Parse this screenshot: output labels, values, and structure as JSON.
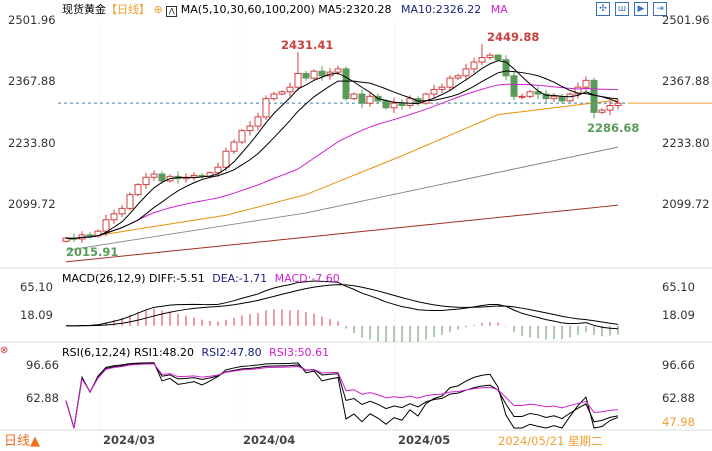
{
  "header": {
    "symbol": "现货黄金",
    "period": "【日线】",
    "ma_label": "MA(5,10,30,60,100,200)",
    "ma5": "MA5:2320.28",
    "ma10": "MA10:2326.22",
    "ma_more": "MA"
  },
  "toolbar": [
    "crosshair-icon",
    "chart-type-icon",
    "play-icon",
    "exit-icon"
  ],
  "macd": {
    "label": "MACD(26,12,9)",
    "diff": "DIFF:-5.51",
    "dea": "DEA:-1.71",
    "macd": "MACD:-7.60",
    "ticks": [
      "65.10",
      "18.09"
    ]
  },
  "rsi": {
    "label": "RSI(6,12,24)",
    "rsi1": "RSI1:48.20",
    "rsi2": "RSI2:47.80",
    "rsi3": "RSI3:50.61",
    "ticks": [
      "96.66",
      "62.88"
    ],
    "current": "47.98"
  },
  "price_ticks": [
    "2501.96",
    "2367.88",
    "2233.80",
    "2099.72"
  ],
  "annotations": {
    "high1": "2431.41",
    "high2": "2449.88",
    "low1": "2286.68",
    "low0": "2015.91"
  },
  "xaxis": {
    "period_button": "日线▲",
    "months": [
      "2024/03",
      "2024/04",
      "2024/05"
    ],
    "cursor_date": "2024/05/21 星期二"
  },
  "colors": {
    "up": "#d04040",
    "down": "#5a9a5a",
    "ma5": "#000000",
    "ma10": "#000000",
    "ma30": "#d020d0",
    "ma60": "#e8900a",
    "ma100": "#888888",
    "ma200": "#a03020"
  },
  "chart_data": {
    "type": "candlestick",
    "first_open": 2018,
    "closes": [
      2025,
      2023,
      2032,
      2030,
      2040,
      2065,
      2078,
      2090,
      2120,
      2142,
      2158,
      2165,
      2150,
      2160,
      2155,
      2158,
      2162,
      2160,
      2168,
      2180,
      2215,
      2235,
      2260,
      2270,
      2290,
      2330,
      2340,
      2345,
      2355,
      2385,
      2375,
      2390,
      2380,
      2388,
      2395,
      2330,
      2340,
      2320,
      2335,
      2325,
      2310,
      2320,
      2315,
      2330,
      2320,
      2340,
      2350,
      2355,
      2375,
      2380,
      2395,
      2410,
      2420,
      2425,
      2415,
      2380,
      2335,
      2335,
      2345,
      2340,
      2330,
      2335,
      2325,
      2340,
      2355,
      2370,
      2300,
      2305,
      2315,
      2320
    ],
    "extremes": [
      {
        "index": 1,
        "low": 2015.91
      },
      {
        "index": 29,
        "high": 2431.41
      },
      {
        "index": 52,
        "high": 2449.88
      },
      {
        "index": 66,
        "low": 2286.68
      }
    ],
    "long_ma": {
      "ma60": [
        [
          0,
          2020
        ],
        [
          20,
          2075
        ],
        [
          30,
          2120
        ],
        [
          42,
          2205
        ],
        [
          54,
          2295
        ],
        [
          69,
          2327
        ]
      ],
      "ma100": [
        [
          0,
          1998
        ],
        [
          30,
          2080
        ],
        [
          69,
          2224
        ]
      ],
      "ma200": [
        [
          0,
          1973
        ],
        [
          69,
          2097
        ]
      ]
    },
    "current_price": 2320.28
  }
}
